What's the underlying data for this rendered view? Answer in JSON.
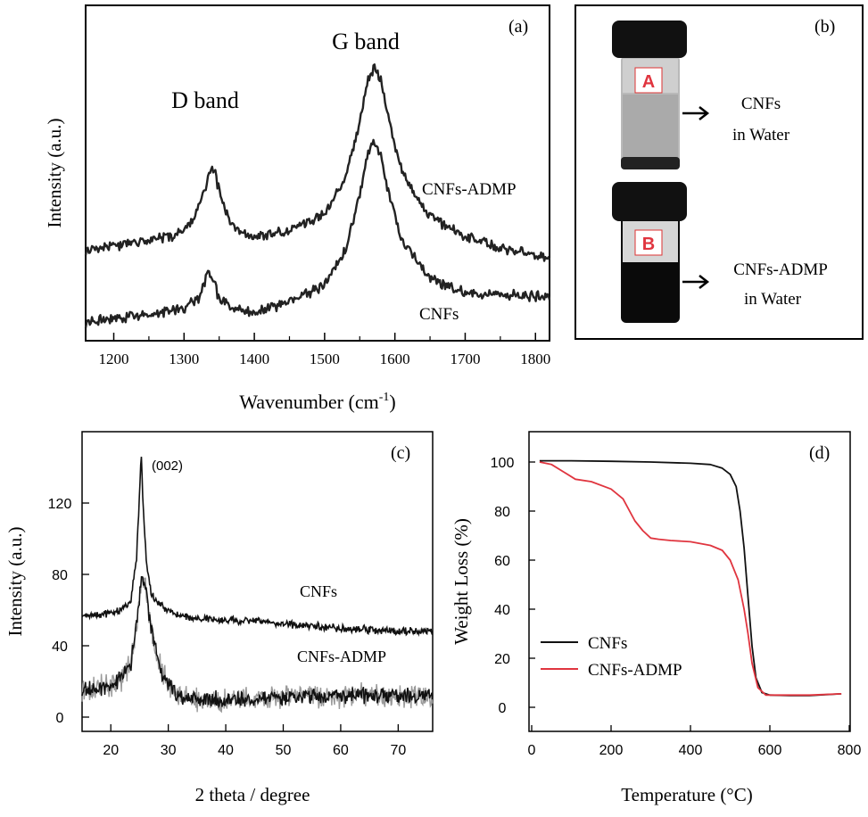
{
  "chart_data": [
    {
      "panel": "(a)",
      "type": "line",
      "xlabel_main": "Wavenumber (cm",
      "xlabel_sup": "-1",
      "xlabel_close": ")",
      "ylabel": "Intensity (a.u.)",
      "xlim": [
        1160,
        1820
      ],
      "xticks": [
        1200,
        1300,
        1400,
        1500,
        1600,
        1700,
        1800
      ],
      "y_ticks_shown": false,
      "grid": false,
      "annotations": [
        "D band",
        "G band"
      ],
      "series": [
        {
          "name": "CNFs-ADMP",
          "color": "#222222",
          "x": [
            1160,
            1200,
            1250,
            1290,
            1310,
            1325,
            1335,
            1340,
            1345,
            1355,
            1370,
            1400,
            1450,
            1500,
            1530,
            1550,
            1560,
            1570,
            1580,
            1590,
            1610,
            1650,
            1700,
            1750,
            1820
          ],
          "y": [
            0.52,
            0.55,
            0.58,
            0.62,
            0.68,
            0.82,
            0.96,
            1.02,
            0.96,
            0.8,
            0.66,
            0.6,
            0.64,
            0.74,
            0.95,
            1.28,
            1.5,
            1.6,
            1.52,
            1.32,
            0.98,
            0.72,
            0.6,
            0.54,
            0.48
          ]
        },
        {
          "name": "CNFs",
          "color": "#222222",
          "x": [
            1160,
            1200,
            1250,
            1300,
            1320,
            1330,
            1335,
            1340,
            1350,
            1365,
            1400,
            1450,
            1500,
            1530,
            1550,
            1560,
            1570,
            1580,
            1590,
            1610,
            1650,
            1700,
            1750,
            1820
          ],
          "y": [
            0.1,
            0.12,
            0.14,
            0.18,
            0.24,
            0.34,
            0.4,
            0.36,
            0.24,
            0.18,
            0.16,
            0.22,
            0.32,
            0.52,
            0.85,
            1.08,
            1.16,
            1.08,
            0.88,
            0.58,
            0.36,
            0.27,
            0.26,
            0.25
          ]
        }
      ]
    },
    {
      "panel": "(c)",
      "type": "line",
      "xlabel": "2 theta / degree",
      "ylabel": "Intensity (a.u.)",
      "xlim": [
        15,
        76
      ],
      "ylim": [
        -8,
        160
      ],
      "xticks": [
        20,
        30,
        40,
        50,
        60,
        70
      ],
      "yticks": [
        0,
        40,
        80,
        120
      ],
      "grid": false,
      "annotations": [
        "(002)"
      ],
      "series": [
        {
          "name": "CNFs",
          "color": "#111111",
          "x": [
            15,
            20,
            22,
            23.5,
            24.5,
            25,
            25.3,
            25.6,
            26.2,
            27,
            28,
            30,
            33,
            36,
            40,
            45,
            50,
            55,
            60,
            65,
            70,
            76
          ],
          "y": [
            57,
            58,
            60,
            66,
            90,
            125,
            148,
            120,
            86,
            70,
            64,
            60,
            56,
            55,
            54,
            54,
            52,
            51,
            50,
            49,
            48,
            48
          ]
        },
        {
          "name": "CNFs-ADMP",
          "color": "#111111",
          "x": [
            15,
            18,
            20,
            22,
            23.5,
            24.5,
            25.3,
            26,
            27,
            28,
            29,
            30,
            32,
            35,
            40,
            45,
            50,
            55,
            60,
            65,
            70,
            76
          ],
          "y": [
            15,
            16,
            18,
            22,
            30,
            52,
            78,
            72,
            50,
            36,
            24,
            18,
            12,
            10,
            10,
            10,
            11,
            12,
            12,
            12,
            12,
            12
          ]
        }
      ]
    },
    {
      "panel": "(d)",
      "type": "line",
      "xlabel": "Temperature (°C)",
      "ylabel": "Weight Loss (%)",
      "xlim": [
        0,
        800
      ],
      "ylim": [
        -10,
        108
      ],
      "xticks": [
        0,
        200,
        400,
        600,
        800
      ],
      "yticks": [
        0,
        20,
        40,
        60,
        80,
        100
      ],
      "legend_position": "lower-left",
      "grid": false,
      "series": [
        {
          "name": "CNFs",
          "color": "#111111",
          "x": [
            20,
            100,
            200,
            300,
            400,
            450,
            480,
            500,
            515,
            525,
            535,
            545,
            555,
            565,
            580,
            600,
            650,
            700,
            780
          ],
          "y": [
            100.5,
            100.5,
            100.3,
            100,
            99.5,
            99,
            97.5,
            95,
            90,
            80,
            65,
            45,
            25,
            12,
            6,
            5,
            4.8,
            4.8,
            5.5
          ]
        },
        {
          "name": "CNFs-ADMP",
          "color": "#e0353f",
          "x": [
            20,
            50,
            80,
            110,
            150,
            200,
            230,
            260,
            280,
            300,
            320,
            350,
            400,
            450,
            480,
            500,
            520,
            535,
            545,
            555,
            570,
            590,
            620,
            700,
            780
          ],
          "y": [
            100,
            99,
            96,
            93,
            92,
            89,
            85,
            76,
            72,
            69,
            68.5,
            68,
            67.5,
            66,
            64,
            60,
            52,
            40,
            30,
            18,
            8,
            5,
            5,
            5,
            5.5
          ]
        }
      ]
    }
  ],
  "panel_b": {
    "label": "(b)",
    "vial_a_label": "A",
    "vial_a_caption_line1": "CNFs",
    "vial_a_caption_line2": "in Water",
    "vial_b_label": "B",
    "vial_b_caption_line1": "CNFs-ADMP",
    "vial_b_caption_line2": "in Water",
    "badge_color": "#e0353f"
  }
}
